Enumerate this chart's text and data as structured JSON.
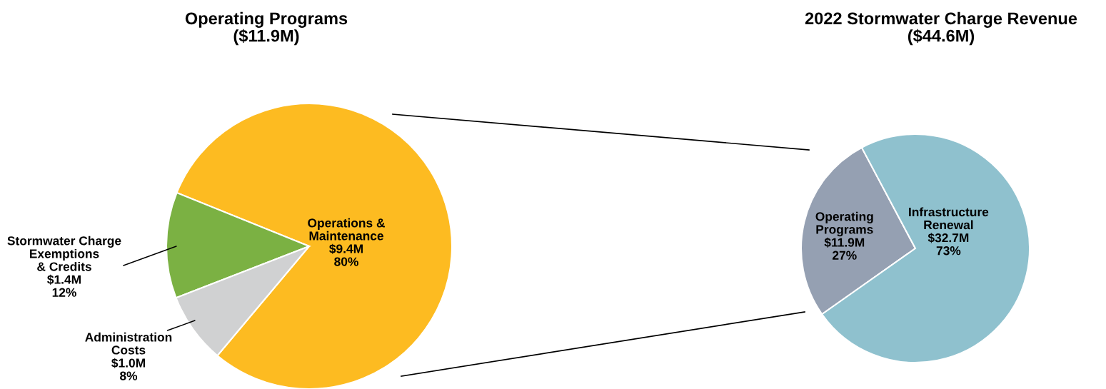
{
  "chart_data": [
    {
      "type": "pie",
      "title": "Operating Programs\n($11.9M)",
      "categories": [
        "Operations &\nMaintenance",
        "Stormwater Charge\nExemptions\n& Credits",
        "Administration\nCosts"
      ],
      "values": [
        80,
        12,
        8
      ],
      "colors": [
        "#fdbb21",
        "#7bb143",
        "#d0d1d2"
      ],
      "value_labels": [
        "$9.4M\n80%",
        "$1.4M\n12%",
        "$1.0M\n8%"
      ]
    },
    {
      "type": "pie",
      "title": "2022 Stormwater Charge Revenue\n($44.6M)",
      "categories": [
        "Operating\nPrograms",
        "Infrastructure\nRenewal"
      ],
      "values": [
        27,
        73
      ],
      "colors": [
        "#95a0b2",
        "#8fc1ce"
      ],
      "value_labels": [
        "$11.9M\n27%",
        "$32.7M\n73%"
      ]
    }
  ]
}
